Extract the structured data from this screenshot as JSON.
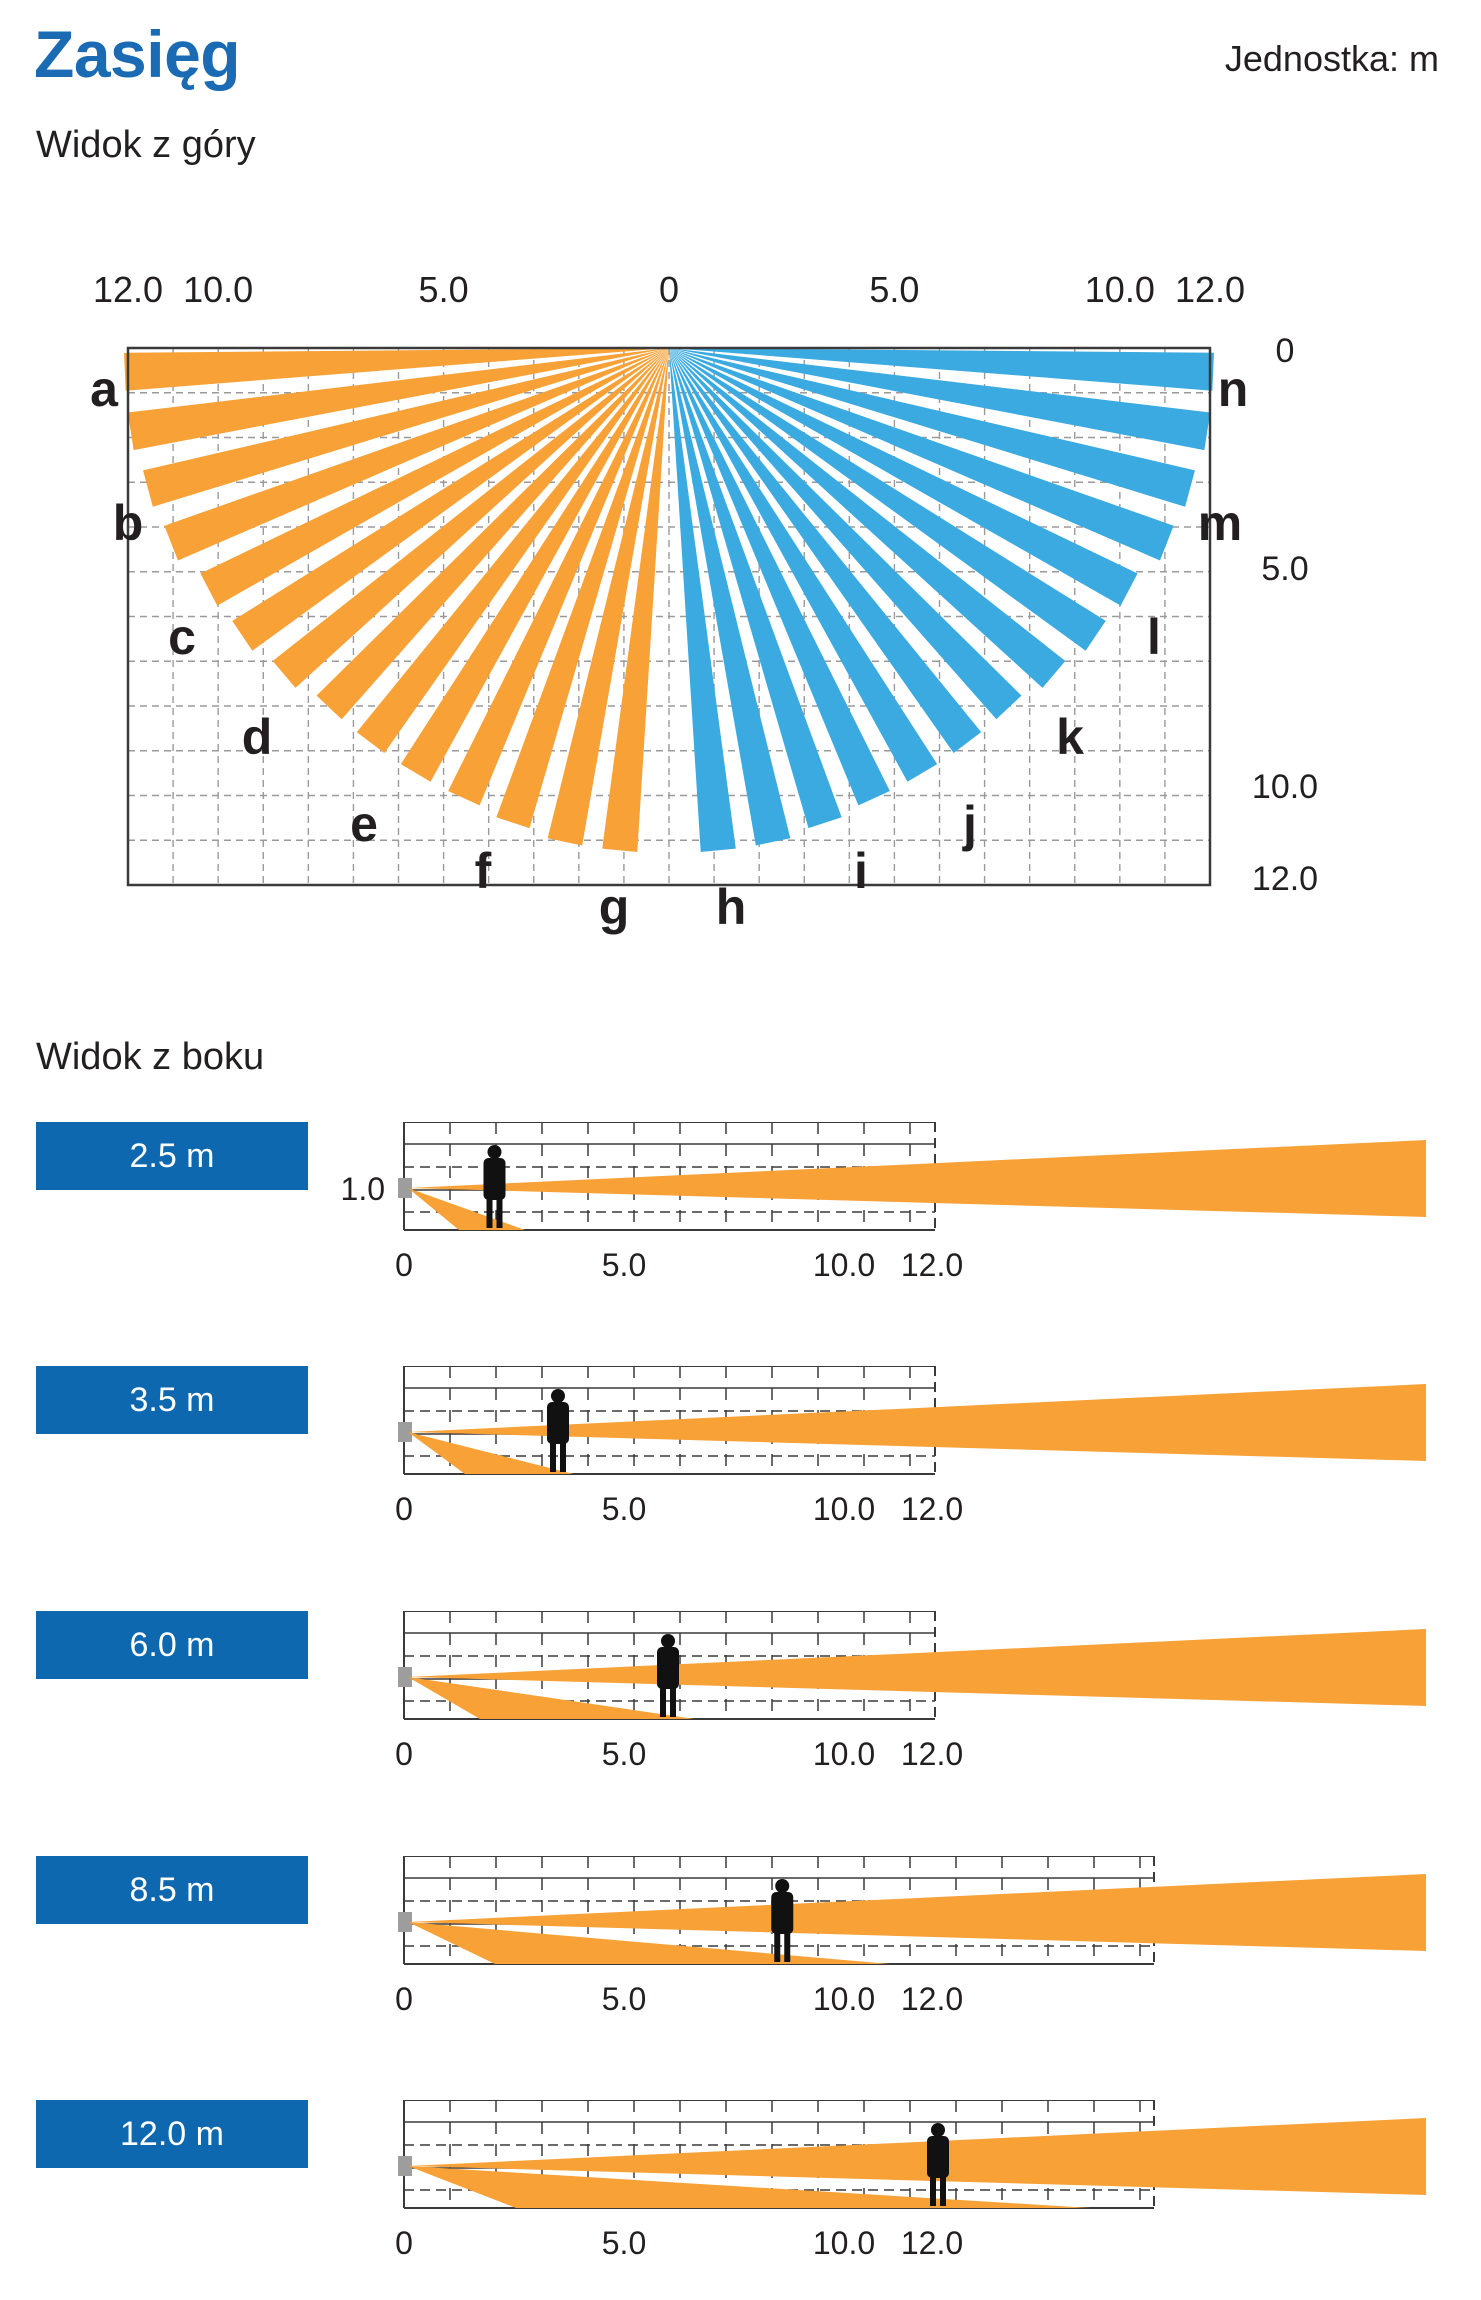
{
  "header": {
    "title": "Zasięg",
    "unit_label": "Jednostka: m"
  },
  "top_view": {
    "section_title": "Widok z góry",
    "x_tick_labels": [
      "12.0",
      "10.0",
      "5.0",
      "0",
      "5.0",
      "10.0",
      "12.0"
    ],
    "y_tick_labels": [
      "0",
      "5.0",
      "10.0",
      "12.0"
    ],
    "zone_labels": [
      "a",
      "b",
      "c",
      "d",
      "e",
      "f",
      "g",
      "h",
      "i",
      "j",
      "k",
      "l",
      "m",
      "n"
    ],
    "colors": {
      "left": "#f7a136",
      "right": "#3aaae1",
      "grid": "#9a9a9a"
    }
  },
  "side_view": {
    "section_title": "Widok z boku",
    "mount_height_label": "1.0",
    "x_tick_labels": [
      "0",
      "5.0",
      "10.0",
      "12.0"
    ],
    "zone_color": "#f7a136",
    "rows": [
      {
        "badge": "2.5 m",
        "range_m": 2.5
      },
      {
        "badge": "3.5 m",
        "range_m": 3.5
      },
      {
        "badge": "6.0 m",
        "range_m": 6.0
      },
      {
        "badge": "8.5 m",
        "range_m": 8.5
      },
      {
        "badge": "12.0 m",
        "range_m": 12.0
      }
    ]
  },
  "chart_data": {
    "type": "diagram",
    "title": "Zasięg",
    "unit": "m",
    "top_view": {
      "x_range": [
        -12,
        12
      ],
      "y_range": [
        0,
        12
      ],
      "zones_left": [
        "a",
        "b",
        "c",
        "d",
        "e",
        "f",
        "g"
      ],
      "zones_right": [
        "h",
        "i",
        "j",
        "k",
        "l",
        "m",
        "n"
      ]
    },
    "side_view": {
      "mount_height": 1.0,
      "ranges": [
        2.5,
        3.5,
        6.0,
        8.5,
        12.0
      ]
    }
  }
}
